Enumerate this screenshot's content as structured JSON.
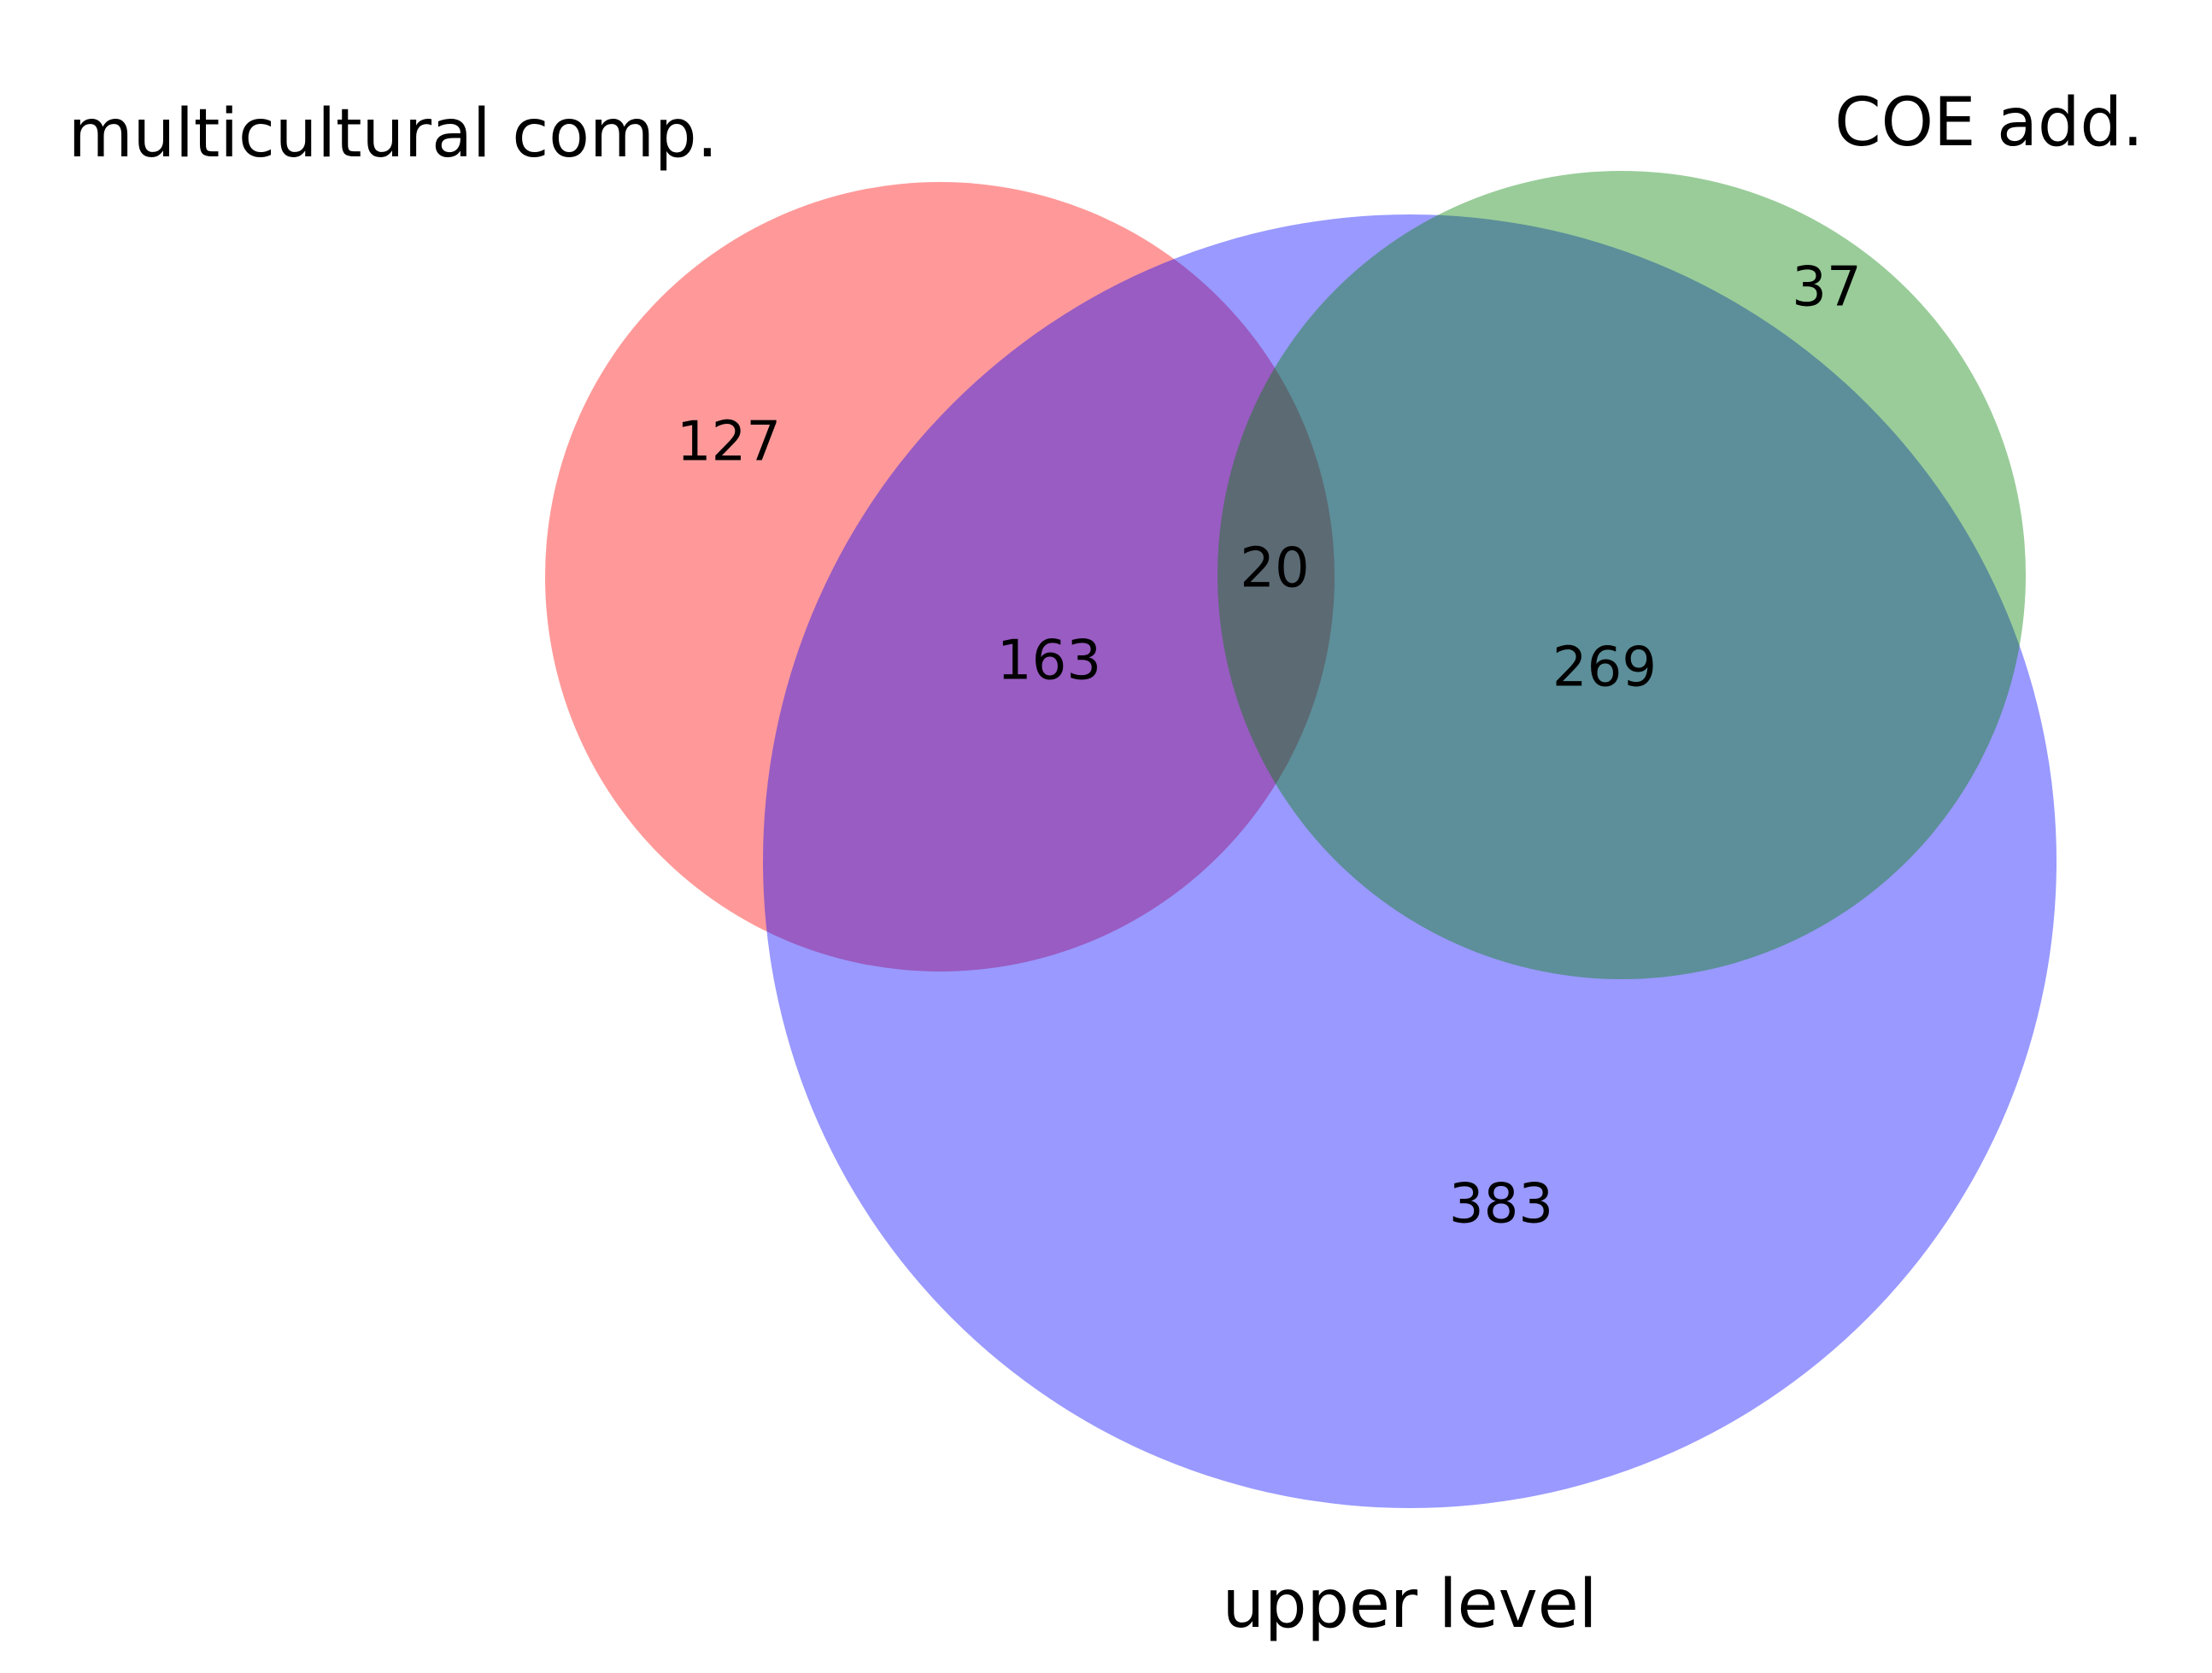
{
  "sets": [
    {
      "key": "A",
      "name": "multicultural comp.",
      "color": "#ff0000"
    },
    {
      "key": "B",
      "name": "COE add.",
      "color": "#008000"
    },
    {
      "key": "C",
      "name": "upper level",
      "color": "#0000ff"
    }
  ],
  "regions": {
    "A_only": "127",
    "B_only": "37",
    "C_only": "383",
    "A_C": "163",
    "B_C": "269",
    "A_B_C": "20"
  },
  "opacity": 0.4
}
